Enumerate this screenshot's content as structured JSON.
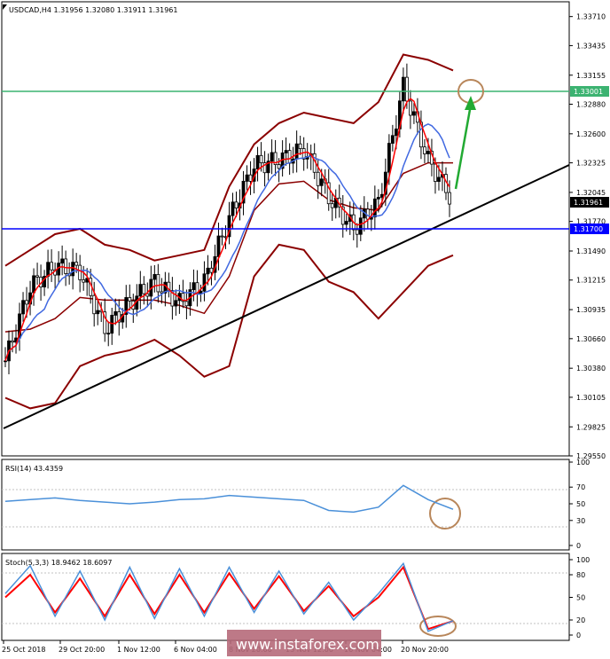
{
  "main_panel": {
    "header": "USDCAD,H4  1.31956 1.32080 1.31911 1.31961",
    "price_ticks": [
      "1.33710",
      "1.33435",
      "1.33155",
      "1.32880",
      "1.32600",
      "1.32325",
      "1.32045",
      "1.31770",
      "1.31490",
      "1.31215",
      "1.30935",
      "1.30660",
      "1.30380",
      "1.30105",
      "1.29825",
      "1.29550"
    ],
    "resistance": {
      "label": "1.33001",
      "value": 1.33001,
      "color": "#3cb371"
    },
    "support": {
      "label": "1.31700",
      "value": 1.317,
      "color": "#0000ff"
    },
    "current_price": {
      "label": "1.31961",
      "value": 1.31961
    }
  },
  "rsi_panel": {
    "header": "RSI(14) 43.4359",
    "ticks": [
      "100",
      "70",
      "50",
      "30",
      "0"
    ]
  },
  "stoch_panel": {
    "header": "Stoch(5,3,3) 18.9462 18.6097",
    "ticks": [
      "100",
      "80",
      "50",
      "20",
      "0"
    ]
  },
  "time_axis": [
    "25 Oct 2018",
    "29 Oct 20:00",
    "1 Nov 12:00",
    "6 Nov 04:00",
    "8 Nov 20:00",
    "13 Nov 12:00",
    "16 Nov 04:00",
    "20 Nov 20:00"
  ],
  "watermark": "www.instaforex.com",
  "colors": {
    "bb": "#8b0000",
    "ma_red": "#ff0000",
    "ma_blue": "#4169e1",
    "rsi": "#4a90d9",
    "stoch_main": "#4a90d9",
    "stoch_signal": "#ff0000",
    "annotation": "#b8865a",
    "arrow": "#22aa33"
  },
  "chart_data": [
    {
      "type": "candlestick",
      "title": "USDCAD,H4",
      "ylim": [
        1.2955,
        1.3385
      ],
      "series": [
        {
          "name": "Bollinger upper",
          "values": [
            1.3135,
            1.315,
            1.3165,
            1.317,
            1.3155,
            1.315,
            1.314,
            1.3145,
            1.315,
            1.321,
            1.325,
            1.327,
            1.328,
            1.3275,
            1.327,
            1.329,
            1.3335,
            1.333,
            1.332
          ]
        },
        {
          "name": "Bollinger lower",
          "values": [
            1.301,
            1.3,
            1.3005,
            1.304,
            1.305,
            1.3055,
            1.3065,
            1.305,
            1.303,
            1.304,
            1.3125,
            1.3155,
            1.315,
            1.312,
            1.311,
            1.3085,
            1.311,
            1.3135,
            1.3145
          ]
        },
        {
          "name": "Close",
          "values": [
            1.3045,
            1.3115,
            1.3135,
            1.313,
            1.3075,
            1.31,
            1.312,
            1.31,
            1.312,
            1.318,
            1.323,
            1.3235,
            1.3245,
            1.32,
            1.317,
            1.3195,
            1.3305,
            1.3235,
            1.3196
          ]
        }
      ]
    },
    {
      "type": "line",
      "title": "RSI(14)",
      "ylim": [
        0,
        100
      ],
      "series": [
        {
          "name": "RSI",
          "values": [
            53,
            55,
            57,
            54,
            52,
            50,
            52,
            55,
            56,
            60,
            58,
            56,
            54,
            42,
            40,
            46,
            72,
            55,
            43.4
          ]
        }
      ]
    },
    {
      "type": "line",
      "title": "Stoch(5,3,3)",
      "ylim": [
        0,
        100
      ],
      "series": [
        {
          "name": "Main",
          "values": [
            55,
            92,
            25,
            85,
            20,
            90,
            22,
            88,
            25,
            90,
            30,
            85,
            28,
            70,
            20,
            55,
            95,
            5,
            18.9
          ]
        },
        {
          "name": "Signal",
          "values": [
            50,
            80,
            30,
            75,
            25,
            80,
            28,
            80,
            30,
            82,
            35,
            78,
            32,
            65,
            25,
            50,
            90,
            8,
            18.6
          ]
        }
      ]
    }
  ]
}
